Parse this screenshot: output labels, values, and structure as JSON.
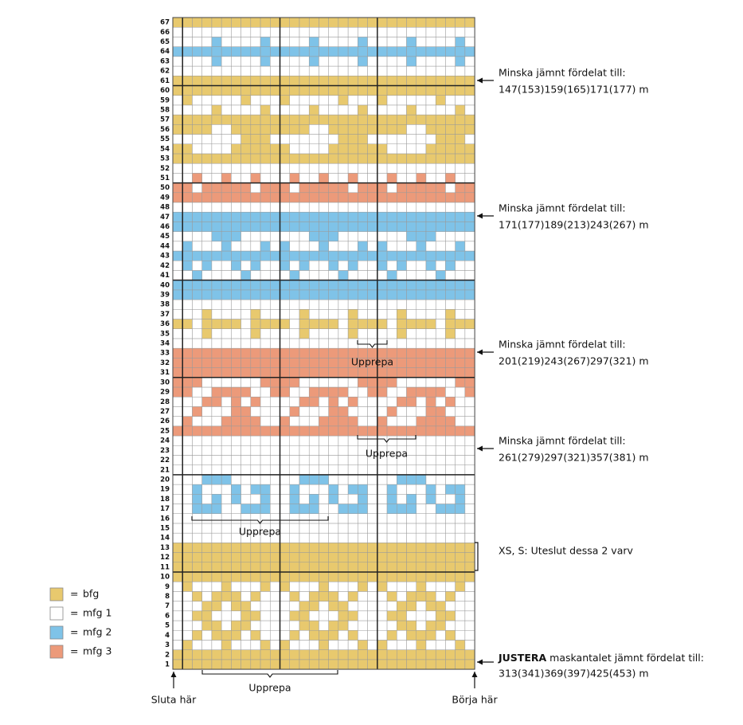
{
  "rows": [
    1,
    2,
    3,
    4,
    5,
    6,
    7,
    8,
    9,
    10,
    11,
    12,
    13,
    14,
    15,
    16,
    17,
    18,
    19,
    20,
    21,
    22,
    23,
    24,
    25,
    26,
    27,
    28,
    29,
    30,
    31,
    32,
    33,
    34,
    35,
    36,
    37,
    38,
    39,
    40,
    41,
    42,
    43,
    44,
    45,
    46,
    47,
    48,
    49,
    50,
    51,
    52,
    53,
    54,
    55,
    56,
    57,
    58,
    59,
    60,
    61,
    62,
    63,
    64,
    65,
    66,
    67
  ],
  "legend": [
    {
      "sign": "=",
      "label": "bfg"
    },
    {
      "sign": "=",
      "label": "mfg 1"
    },
    {
      "sign": "=",
      "label": "mfg 2"
    },
    {
      "sign": "=",
      "label": "mfg 3"
    }
  ],
  "notes": [
    {
      "title": "Minska jämnt fördelat till:",
      "counts": "147(153)159(165)171(177) m"
    },
    {
      "title": "Minska jämnt fördelat till:",
      "counts": "171(177)189(213)243(267) m"
    },
    {
      "title": "Minska jämnt fördelat till:",
      "counts": "201(219)243(267)297(321) m"
    },
    {
      "title": "Minska jämnt fördelat till:",
      "counts": "261(279)297(321)357(381) m"
    }
  ],
  "exclude_note": "XS, S: Uteslut dessa 2 varv",
  "adjust_note": {
    "bold": "JUSTERA",
    "text": "maskantalet jämnt fördelat till:",
    "counts": "313(341)369(397)425(453) m"
  },
  "repeat_labels": [
    "Upprepa",
    "Upprepa",
    "Upprepa",
    "Upprepa"
  ],
  "end_label": "Sluta här",
  "start_label": "Börja här"
}
